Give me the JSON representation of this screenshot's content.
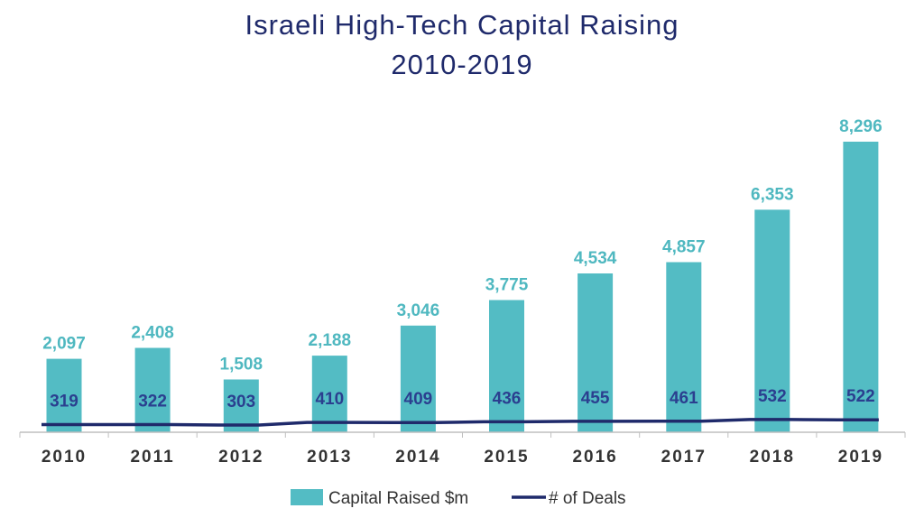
{
  "title_line1": "Israeli High-Tech Capital Raising",
  "title_line2": "2010-2019",
  "colors": {
    "bar": "#53bcc4",
    "bar_label": "#4fb8c0",
    "line": "#1f2a6b",
    "deal_label": "#2b3f8f",
    "axis": "#bfbfbf",
    "tick": "#333333",
    "title": "#1f2a6b"
  },
  "chart_data": {
    "type": "bar",
    "title": "Israeli High-Tech Capital Raising 2010-2019",
    "categories": [
      "2010",
      "2011",
      "2012",
      "2013",
      "2014",
      "2015",
      "2016",
      "2017",
      "2018",
      "2019"
    ],
    "series": [
      {
        "name": "Capital Raised $m",
        "type": "bar",
        "values": [
          2097,
          2408,
          1508,
          2188,
          3046,
          3775,
          4534,
          4857,
          6353,
          8296
        ],
        "labels": [
          "2,097",
          "2,408",
          "1,508",
          "2,188",
          "3,046",
          "3,775",
          "4,534",
          "4,857",
          "6,353",
          "8,296"
        ]
      },
      {
        "name": "# of Deals",
        "type": "line",
        "values": [
          319,
          322,
          303,
          410,
          409,
          436,
          455,
          461,
          532,
          522
        ],
        "labels": [
          "319",
          "322",
          "303",
          "410",
          "409",
          "436",
          "455",
          "461",
          "532",
          "522"
        ]
      }
    ],
    "ylim": [
      0,
      8296
    ],
    "grid": false,
    "legend_position": "bottom"
  }
}
